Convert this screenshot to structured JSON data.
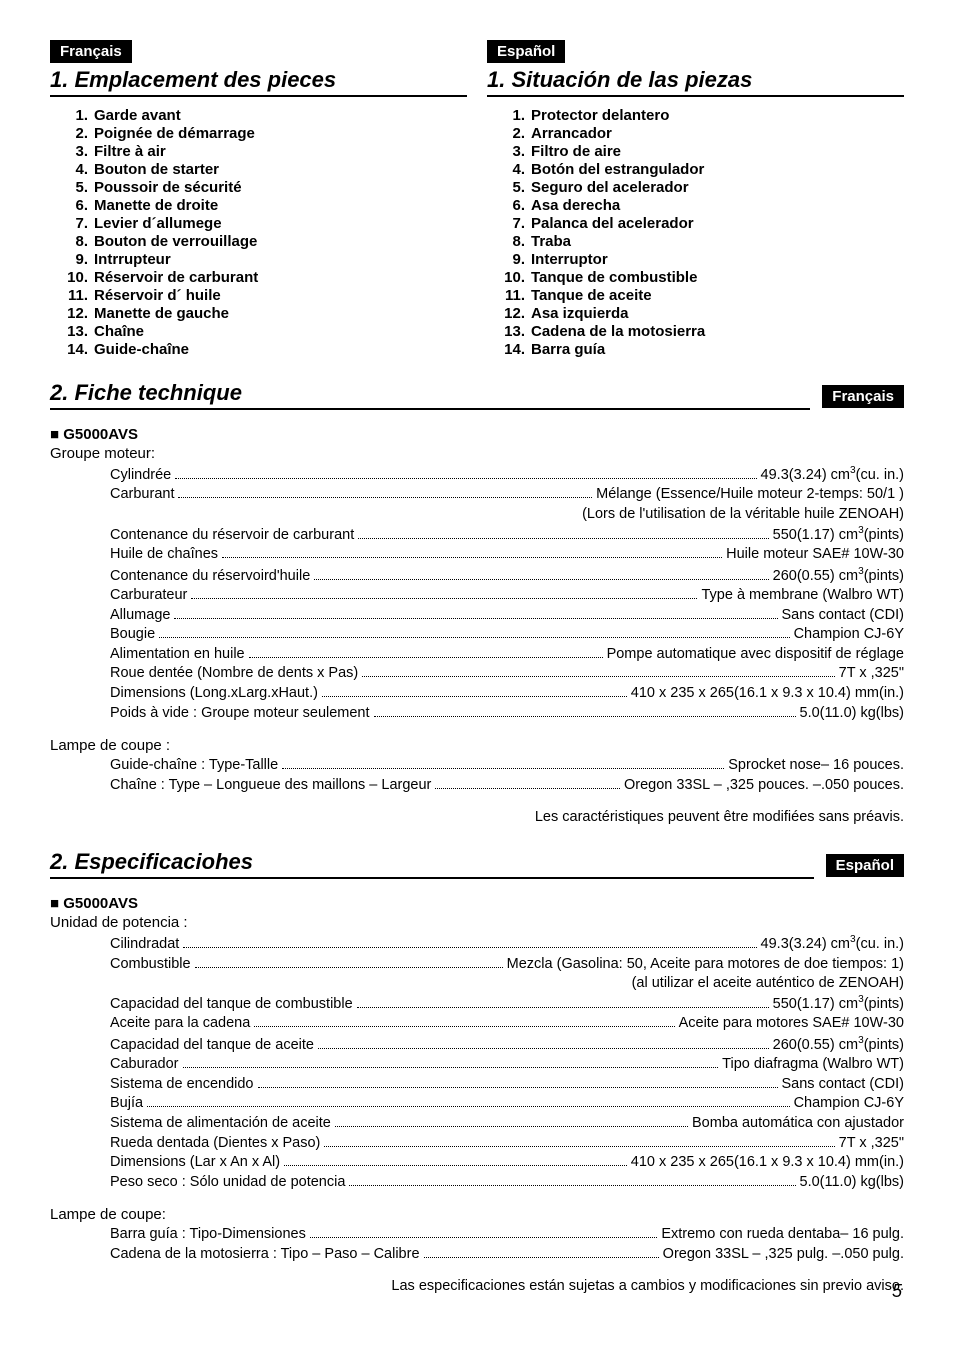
{
  "lang": {
    "fr": "Français",
    "es": "Español"
  },
  "sec1": {
    "fr_title": "1. Emplacement des pieces",
    "es_title": "1. Situación de las piezas",
    "fr_parts": [
      "Garde avant",
      "Poignée de démarrage",
      "Filtre à air",
      "Bouton de starter",
      "Poussoir de sécurité",
      "Manette de droite",
      "Levier d´allumege",
      "Bouton de verrouillage",
      "Intrrupteur",
      "Réservoir de carburant",
      "Réservoir d´ huile",
      "Manette de gauche",
      "Chaîne",
      "Guide-chaîne"
    ],
    "es_parts": [
      "Protector delantero",
      "Arrancador",
      "Filtro de aire",
      "Botón del estrangulador",
      "Seguro del acelerador",
      "Asa derecha",
      "Palanca del acelerador",
      "Traba",
      "Interruptor",
      "Tanque de combustible",
      "Tanque de aceite",
      "Asa izquierda",
      "Cadena de la motosierra",
      "Barra guía"
    ]
  },
  "sec2fr": {
    "title": "2. Fiche technique",
    "model": "G5000AVS",
    "group": "Groupe moteur:",
    "rows": [
      {
        "l": "Cylindrée",
        "v": "49.3(3.24) cm³(cu. in.)"
      },
      {
        "l": "Carburant",
        "v": "Mélange (Essence/Huile moteur 2-temps: 50/1 )"
      },
      {
        "sub": "(Lors de l'utilisation de la véritable huile ZENOAH)"
      },
      {
        "l": "Contenance du réservoir de carburant",
        "v": "550(1.17) cm³(pints)"
      },
      {
        "l": "Huile de chaînes",
        "v": "Huile moteur SAE# 10W-30"
      },
      {
        "l": "Contenance du réservoird'huile",
        "v": "260(0.55) cm³(pints)"
      },
      {
        "l": "Carburateur",
        "v": "Type à membrane (Walbro WT)"
      },
      {
        "l": "Allumage",
        "v": "Sans contact (CDI)"
      },
      {
        "l": "Bougie",
        "v": "Champion CJ-6Y"
      },
      {
        "l": "Alimentation en huile",
        "v": "Pompe automatique avec dispositif de réglage"
      },
      {
        "l": "Roue dentée (Nombre de dents x Pas)",
        "v": "7T x ,325\""
      },
      {
        "l": "Dimensions (Long.xLarg.xHaut.)",
        "v": "410 x 235 x 265(16.1 x 9.3 x 10.4) mm(in.)"
      },
      {
        "l": "Poids à vide : Groupe moteur seulement",
        "v": "5.0(11.0) kg(lbs)"
      }
    ],
    "group2": "Lampe de coupe :",
    "rows2": [
      {
        "l": "Guide-chaîne : Type-Tallle",
        "v": "Sprocket nose– 16 pouces."
      },
      {
        "l": "Chaîne : Type –  Longueue des maillons –  Largeur",
        "v": "Oregon 33SL – ,325 pouces. –.050 pouces."
      }
    ],
    "note": "Les caractéristiques peuvent être modifiées sans préavis."
  },
  "sec2es": {
    "title": "2. Especificaciohes",
    "model": "G5000AVS",
    "group": "Unidad de potencia :",
    "rows": [
      {
        "l": "Cilindradat",
        "v": "49.3(3.24) cm³(cu. in.)"
      },
      {
        "l": "Combustible",
        "v": "Mezcla (Gasolina: 50, Aceite para motores de doe tiempos: 1)"
      },
      {
        "sub": "(al utilizar el aceite auténtico de ZENOAH)"
      },
      {
        "l": "Capacidad del tanque de combustible",
        "v": "550(1.17) cm³(pints)"
      },
      {
        "l": "Aceite para la cadena",
        "v": "Aceite para motores SAE# 10W-30"
      },
      {
        "l": "Capacidad del tanque de aceite",
        "v": "260(0.55) cm³(pints)"
      },
      {
        "l": "Caburador",
        "v": "Tipo diafragma (Walbro WT)"
      },
      {
        "l": "Sistema de encendido",
        "v": "Sans contact (CDI)"
      },
      {
        "l": "Bujía",
        "v": "Champion CJ-6Y"
      },
      {
        "l": "Sistema de alimentación de aceite",
        "v": "Bomba automática con ajustador"
      },
      {
        "l": "Rueda dentada (Dientes x Paso)",
        "v": "7T x ,325\""
      },
      {
        "l": "Dimensions (Lar x An x Al)",
        "v": "410 x 235 x 265(16.1 x 9.3 x 10.4) mm(in.)"
      },
      {
        "l": "Peso seco : Sólo unidad de potencia",
        "v": "5.0(11.0) kg(lbs)"
      }
    ],
    "group2": "Lampe de coupe:",
    "rows2": [
      {
        "l": "Barra guía : Tipo-Dimensiones",
        "v": "Extremo con rueda dentaba– 16 pulg."
      },
      {
        "l": "Cadena de la motosierra :  Tipo – Paso – Calibre",
        "v": "Oregon 33SL – ,325 pulg. –.050 pulg."
      }
    ],
    "note": "Las especificaciones están sujetas a cambios y modificaciones sin previo aviso."
  },
  "page_number": "5"
}
